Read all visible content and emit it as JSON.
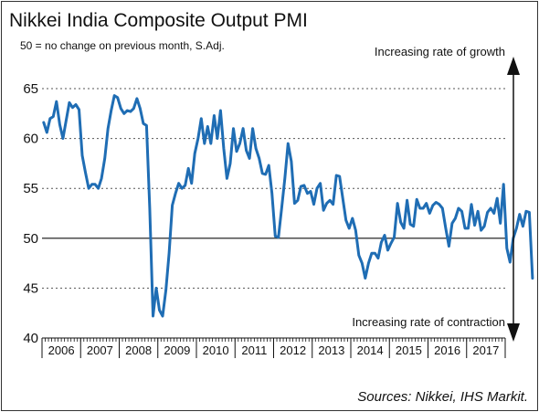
{
  "chart_data": {
    "type": "line",
    "title": "Nikkei India Composite Output PMI",
    "subtitle": "50 = no change on previous month, S.Adj.",
    "annotation_top": "Increasing rate of growth",
    "annotation_bottom": "Increasing rate of contraction",
    "source": "Sources: Nikkei, IHS Markit.",
    "xlabel": "",
    "ylabel": "",
    "ylim": [
      40,
      65
    ],
    "yticks": [
      40,
      45,
      50,
      55,
      60,
      65
    ],
    "xticks": [
      "2006",
      "2007",
      "2008",
      "2009",
      "2010",
      "2011",
      "2012",
      "2013",
      "2014",
      "2015",
      "2016",
      "2017"
    ],
    "grid": "dotted horizontal",
    "reference_line": 50,
    "colors": {
      "line": "#1f6db4",
      "grid": "#555555",
      "text": "#111111",
      "frame": "#333333"
    },
    "series": [
      {
        "start": "2006-01",
        "frequency": "monthly",
        "values": [
          61.6,
          60.6,
          62.0,
          62.2,
          63.7,
          61.4,
          60.0,
          61.8,
          63.6,
          63.1,
          63.4,
          62.9,
          58.3,
          56.6,
          55.0,
          55.4,
          55.4,
          55.0,
          56.0,
          58.0,
          61.0,
          62.8,
          64.3,
          64.1,
          63.0,
          62.5,
          62.8,
          62.7,
          63.0,
          64.0,
          63.0,
          61.5,
          61.3,
          53.0,
          42.2,
          45.0,
          42.8,
          42.2,
          44.8,
          48.5,
          53.3,
          54.5,
          55.5,
          55.0,
          55.3,
          57.0,
          55.5,
          58.5,
          60.0,
          62.0,
          59.5,
          61.2,
          59.5,
          62.3,
          60.0,
          62.8,
          59.0,
          56.0,
          57.5,
          61.0,
          58.7,
          59.5,
          61.0,
          58.8,
          58.0,
          61.0,
          59.0,
          58.0,
          56.5,
          56.4,
          57.3,
          54.5,
          50.2,
          50.1,
          53.0,
          56.0,
          59.5,
          57.7,
          53.5,
          53.8,
          55.2,
          55.3,
          54.5,
          54.7,
          53.4,
          55.0,
          55.5,
          52.8,
          53.5,
          53.8,
          53.4,
          56.3,
          56.2,
          54.0,
          51.8,
          51.0,
          52.0,
          50.8,
          48.3,
          47.5,
          46.0,
          47.5,
          48.5,
          48.5,
          48.0,
          49.6,
          50.3,
          48.8,
          49.5,
          50.1,
          53.5,
          51.6,
          51.0,
          53.8,
          51.4,
          51.2,
          53.9,
          53.0,
          53.0,
          53.5,
          52.5,
          53.3,
          53.6,
          53.4,
          53.0,
          51.0,
          49.2,
          51.5,
          52.0,
          53.0,
          52.7,
          51.0,
          51.0,
          53.4,
          51.3,
          52.7,
          50.8,
          51.2,
          52.6,
          53.0,
          52.5,
          54.0,
          51.5,
          55.4,
          49.0,
          47.6,
          50.0,
          51.0,
          52.4,
          51.2,
          52.7,
          52.6,
          46.0
        ]
      }
    ]
  }
}
